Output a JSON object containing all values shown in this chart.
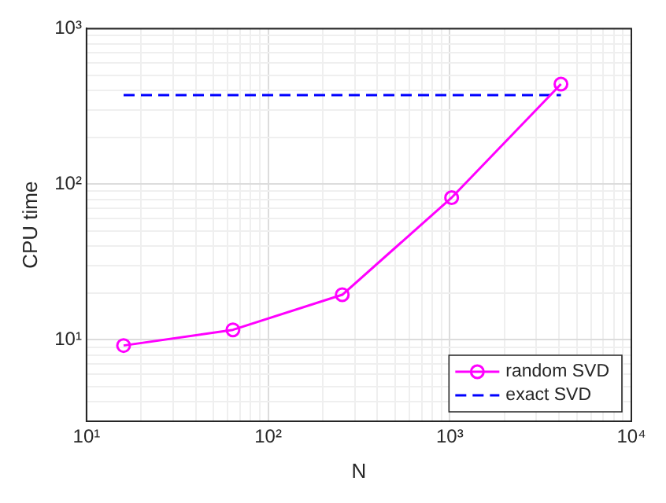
{
  "chart_data": {
    "type": "line",
    "xlabel": "N",
    "ylabel": "CPU time",
    "log": "xy",
    "grid": true,
    "legend": "bottom right",
    "xlim": [
      10,
      10000
    ],
    "ylim": [
      3,
      1000
    ],
    "xticks": [
      {
        "value": 10,
        "label": "10¹"
      },
      {
        "value": 20,
        "label": null
      },
      {
        "value": 30,
        "label": null
      },
      {
        "value": 40,
        "label": null
      },
      {
        "value": 50,
        "label": null
      },
      {
        "value": 60,
        "label": null
      },
      {
        "value": 70,
        "label": null
      },
      {
        "value": 80,
        "label": null
      },
      {
        "value": 90,
        "label": null
      },
      {
        "value": 100,
        "label": "10²"
      },
      {
        "value": 200,
        "label": null
      },
      {
        "value": 300,
        "label": null
      },
      {
        "value": 400,
        "label": null
      },
      {
        "value": 500,
        "label": null
      },
      {
        "value": 600,
        "label": null
      },
      {
        "value": 700,
        "label": null
      },
      {
        "value": 800,
        "label": null
      },
      {
        "value": 900,
        "label": null
      },
      {
        "value": 1000,
        "label": "10³"
      },
      {
        "value": 2000,
        "label": null
      },
      {
        "value": 3000,
        "label": null
      },
      {
        "value": 4000,
        "label": null
      },
      {
        "value": 5000,
        "label": null
      },
      {
        "value": 6000,
        "label": null
      },
      {
        "value": 7000,
        "label": null
      },
      {
        "value": 8000,
        "label": null
      },
      {
        "value": 9000,
        "label": null
      },
      {
        "value": 10000,
        "label": "10⁴"
      }
    ],
    "yticks": [
      {
        "value": 3,
        "label": null
      },
      {
        "value": 4,
        "label": null
      },
      {
        "value": 5,
        "label": null
      },
      {
        "value": 6,
        "label": null
      },
      {
        "value": 7,
        "label": null
      },
      {
        "value": 8,
        "label": null
      },
      {
        "value": 9,
        "label": null
      },
      {
        "value": 10,
        "label": "10¹"
      },
      {
        "value": 20,
        "label": null
      },
      {
        "value": 30,
        "label": null
      },
      {
        "value": 40,
        "label": null
      },
      {
        "value": 50,
        "label": null
      },
      {
        "value": 60,
        "label": null
      },
      {
        "value": 70,
        "label": null
      },
      {
        "value": 80,
        "label": null
      },
      {
        "value": 90,
        "label": null
      },
      {
        "value": 100,
        "label": "10²"
      },
      {
        "value": 200,
        "label": null
      },
      {
        "value": 300,
        "label": null
      },
      {
        "value": 400,
        "label": null
      },
      {
        "value": 500,
        "label": null
      },
      {
        "value": 600,
        "label": null
      },
      {
        "value": 700,
        "label": null
      },
      {
        "value": 800,
        "label": null
      },
      {
        "value": 900,
        "label": null
      },
      {
        "value": 1000,
        "label": "10³"
      }
    ],
    "series": [
      {
        "name": "random SVD",
        "color": "#ff00ff",
        "x": [
          16,
          64,
          256,
          1024,
          4096
        ],
        "values": [
          9.2,
          11.6,
          19.5,
          82,
          440
        ],
        "marker": "circle",
        "line_style": "solid"
      },
      {
        "name": "exact SVD",
        "color": "#0000ff",
        "x": [
          16,
          4096
        ],
        "values": [
          374,
          374
        ],
        "marker": "none",
        "line_style": "dashed"
      }
    ]
  }
}
